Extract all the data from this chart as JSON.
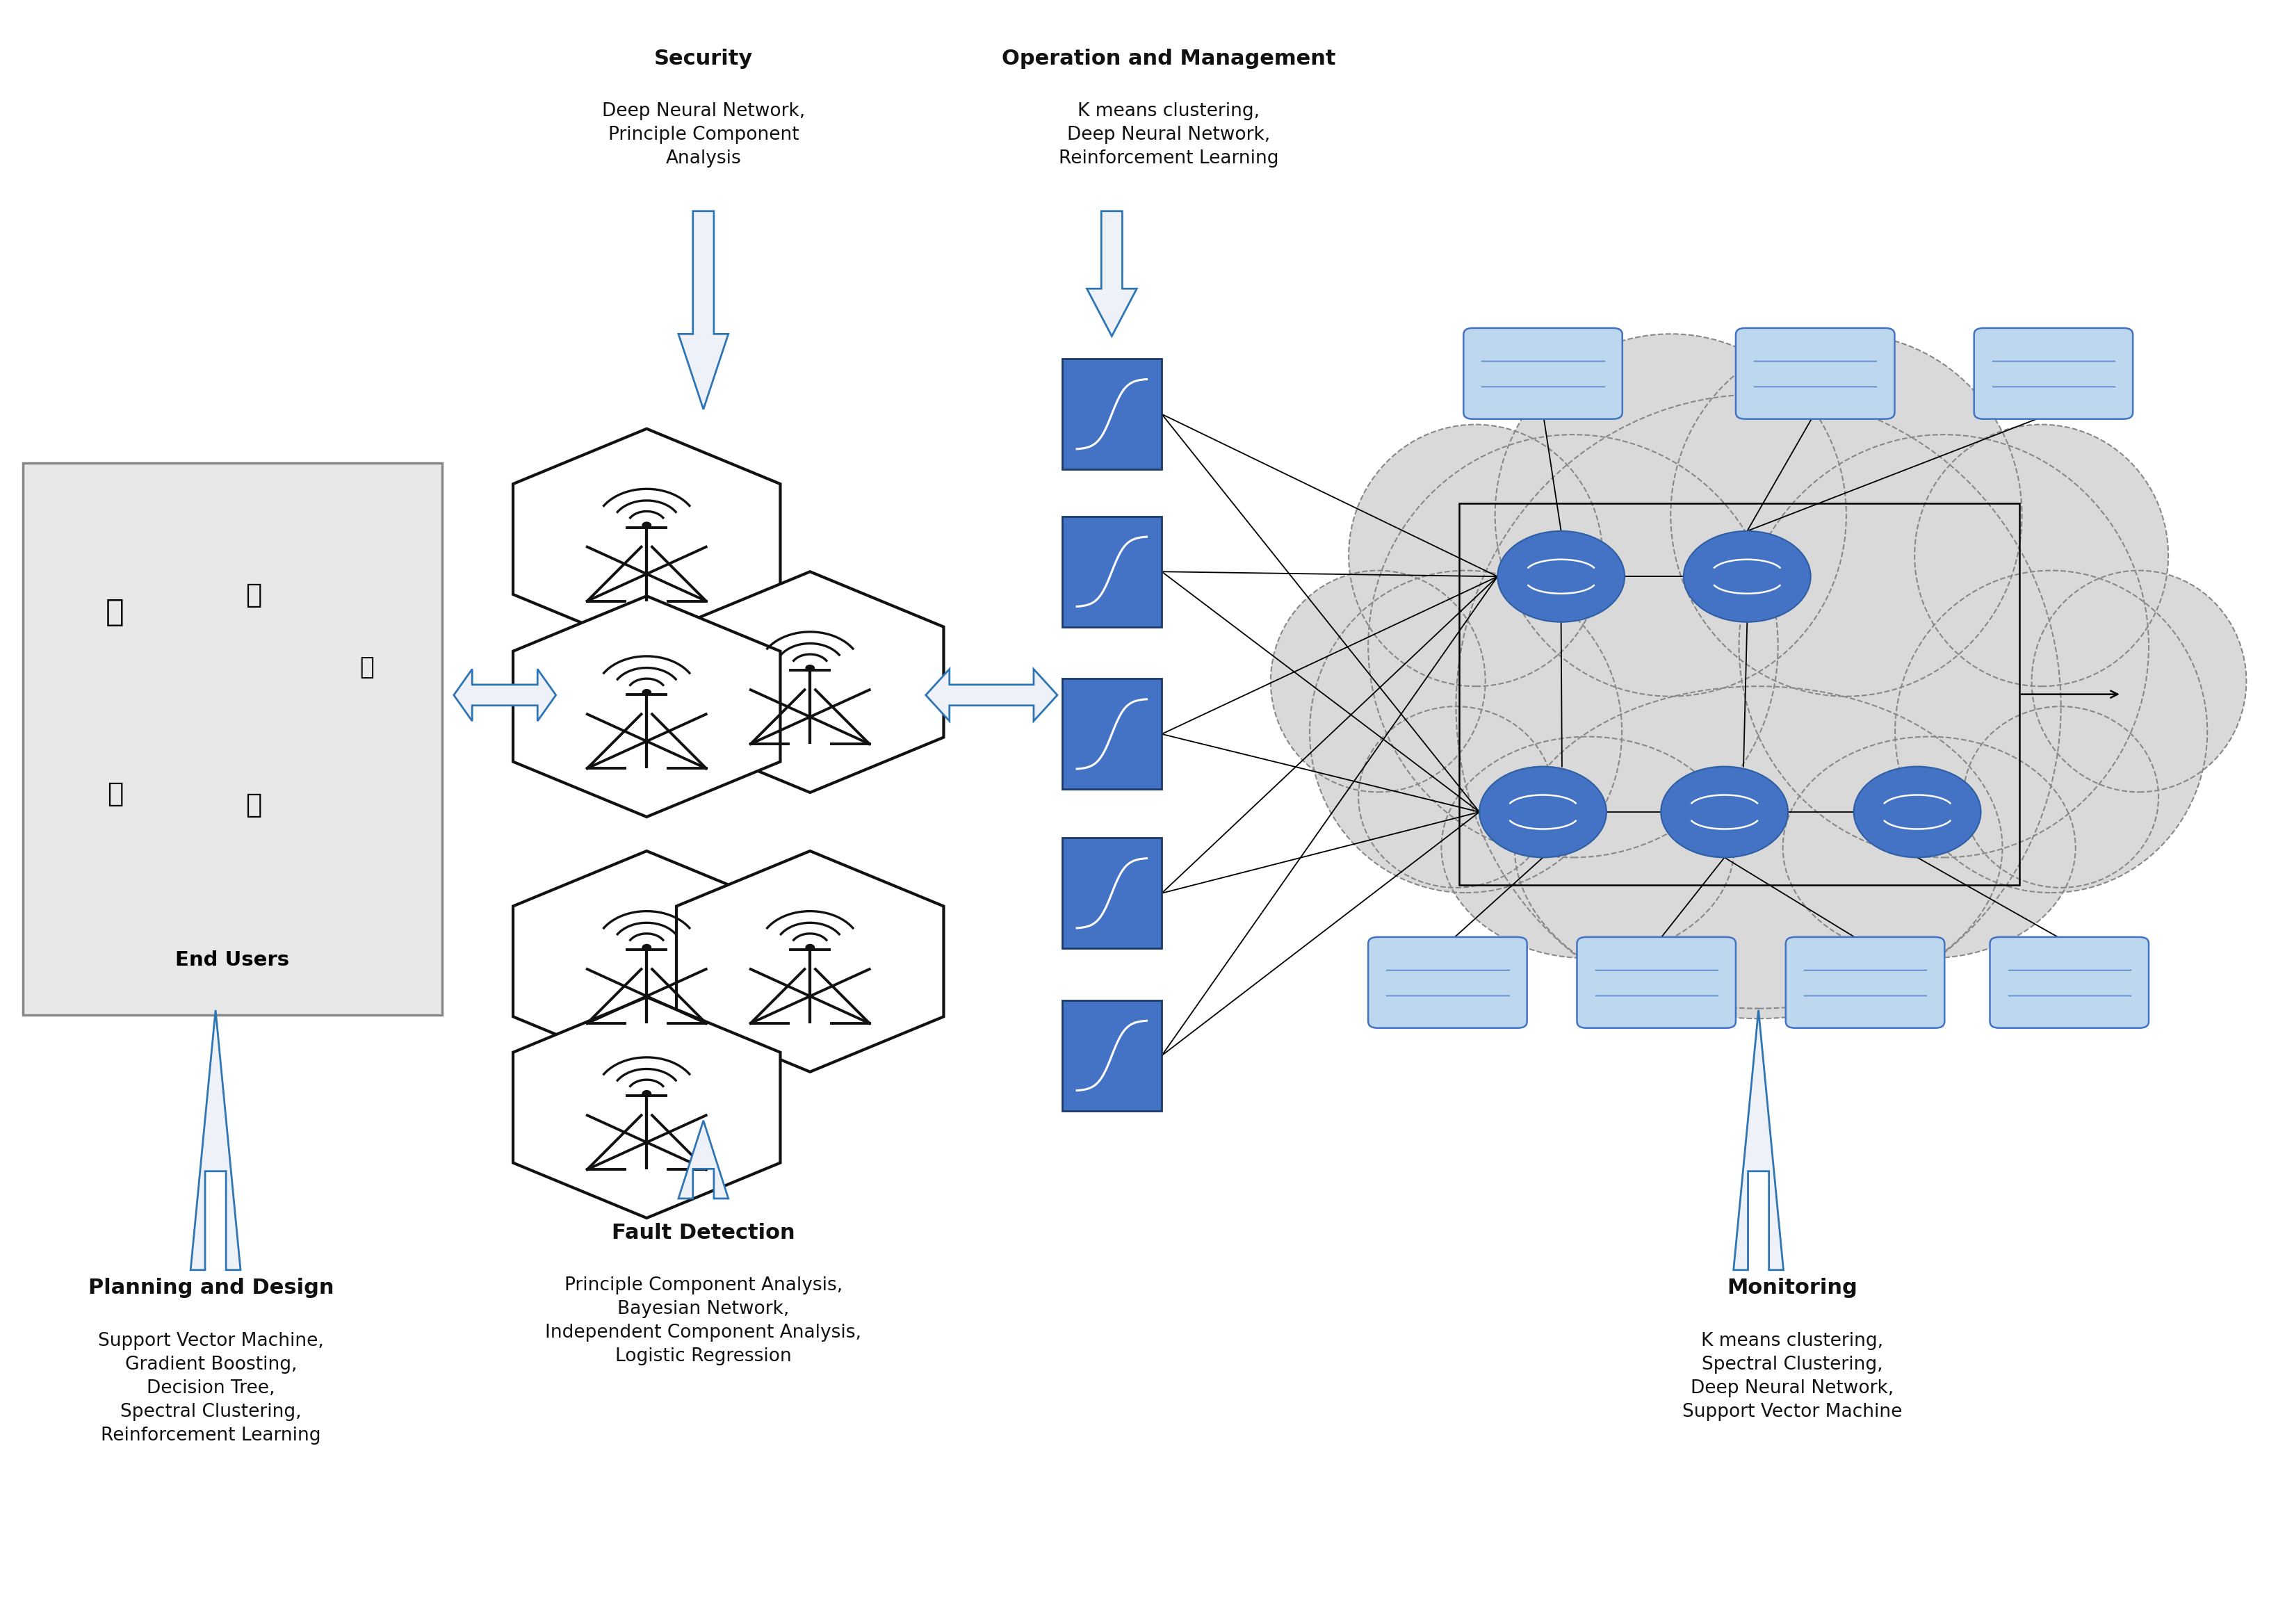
{
  "background_color": "#ffffff",
  "arrow_color": "#4472C4",
  "arrow_color_dark": "#2E75B6",
  "cloud_color": "#D9D9D9",
  "cloud_edge_color": "#888888",
  "end_users_box_color": "#E8E8E8",
  "labels": {
    "security_title": "Security",
    "security_body": "Deep Neural Network,\nPrinciple Component\nAnalysis",
    "operation_title": "Operation and Management",
    "operation_body": "K means clustering,\nDeep Neural Network,\nReinforcement Learning",
    "planning_title": "Planning and Design",
    "planning_body": "Support Vector Machine,\nGradient Boosting,\nDecision Tree,\nSpectral Clustering,\nReinforcement Learning",
    "fault_title": "Fault Detection",
    "fault_body": "Principle Component Analysis,\nBayesian Network,\nIndependent Component Analysis,\nLogistic Regression",
    "monitoring_title": "Monitoring",
    "monitoring_body": "K means clustering,\nSpectral Clustering,\nDeep Neural Network,\nSupport Vector Machine",
    "end_users": "End Users"
  }
}
